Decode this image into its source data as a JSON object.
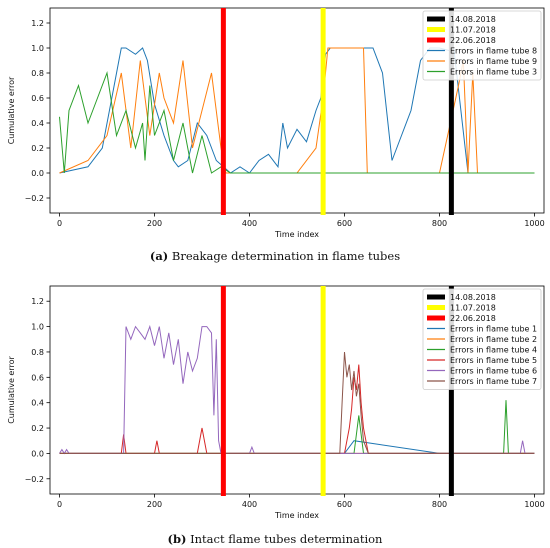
{
  "chart_data": [
    {
      "type": "line",
      "caption_label": "(a)",
      "caption_text": "Breakage determination in flame tubes",
      "xlabel": "Time index",
      "ylabel": "Cumulative error",
      "xlim": [
        -20,
        1020
      ],
      "ylim": [
        -0.32,
        1.32
      ],
      "xticks": [
        0,
        200,
        400,
        600,
        800,
        1000
      ],
      "yticks": [
        -0.2,
        0.0,
        0.2,
        0.4,
        0.6,
        0.8,
        1.0,
        1.2
      ],
      "ytick_labels": [
        "−0.2",
        "0.0",
        "0.2",
        "0.4",
        "0.6",
        "0.8",
        "1.0",
        "1.2"
      ],
      "legend": "upper-right",
      "vlines": [
        {
          "label": "14.08.2018",
          "x": 825,
          "color": "#000000"
        },
        {
          "label": "11.07.2018",
          "x": 555,
          "color": "#ffff00"
        },
        {
          "label": "22.06.2018",
          "x": 345,
          "color": "#ff0000"
        }
      ],
      "series": [
        {
          "name": "Errors in flame tube 8",
          "color": "#1f77b4",
          "x": [
            0,
            60,
            90,
            110,
            125,
            130,
            140,
            160,
            175,
            185,
            200,
            220,
            240,
            250,
            270,
            290,
            310,
            330,
            345,
            360,
            380,
            400,
            420,
            440,
            460,
            470,
            480,
            500,
            520,
            540,
            550,
            560,
            570,
            580,
            600,
            610,
            620,
            640,
            660,
            680,
            700,
            720,
            740,
            760,
            780,
            800,
            820,
            830,
            860,
            880,
            900,
            930,
            960,
            1000
          ],
          "y": [
            0.0,
            0.05,
            0.2,
            0.6,
            0.9,
            1.0,
            1.0,
            0.95,
            1.0,
            0.9,
            0.55,
            0.3,
            0.1,
            0.05,
            0.1,
            0.4,
            0.3,
            0.1,
            0.05,
            0.0,
            0.05,
            0.0,
            0.1,
            0.15,
            0.05,
            0.4,
            0.2,
            0.35,
            0.25,
            0.5,
            0.6,
            0.95,
            1.0,
            1.0,
            1.0,
            1.0,
            1.0,
            1.0,
            1.0,
            0.8,
            0.1,
            0.3,
            0.5,
            0.9,
            1.0,
            1.0,
            0.98,
            1.0,
            0.0,
            0.0,
            0.0,
            0.0,
            0.0,
            0.0
          ]
        },
        {
          "name": "Errors in flame tube 9",
          "color": "#ff7f0e",
          "x": [
            0,
            60,
            100,
            130,
            150,
            170,
            190,
            210,
            220,
            240,
            260,
            280,
            300,
            320,
            340,
            350,
            400,
            450,
            500,
            540,
            555,
            565,
            600,
            640,
            648,
            660,
            700,
            760,
            800,
            840,
            850,
            860,
            870,
            880,
            1000
          ],
          "y": [
            0.0,
            0.1,
            0.3,
            0.8,
            0.2,
            0.9,
            0.3,
            0.8,
            0.6,
            0.4,
            0.9,
            0.2,
            0.5,
            0.8,
            0.2,
            0.0,
            0.0,
            0.0,
            0.0,
            0.2,
            0.6,
            1.0,
            1.0,
            1.0,
            0.0,
            0.0,
            0.0,
            0.0,
            0.0,
            0.7,
            0.9,
            0.0,
            0.8,
            0.0,
            0.0
          ]
        },
        {
          "name": "Errors in flame tube 3",
          "color": "#2ca02c",
          "x": [
            0,
            10,
            20,
            40,
            60,
            80,
            100,
            120,
            140,
            160,
            175,
            180,
            190,
            200,
            220,
            240,
            260,
            280,
            300,
            320,
            340,
            360,
            400,
            480,
            520,
            540,
            560,
            580,
            600,
            620,
            625,
            640,
            660,
            700,
            760,
            800,
            830,
            840,
            880,
            900,
            940,
            960,
            1000
          ],
          "y": [
            0.45,
            0.0,
            0.5,
            0.7,
            0.4,
            0.6,
            0.8,
            0.3,
            0.5,
            0.2,
            0.4,
            0.1,
            0.7,
            0.3,
            0.5,
            0.1,
            0.4,
            0.0,
            0.3,
            0.0,
            0.05,
            0.0,
            0.0,
            0.0,
            0.0,
            0.0,
            0.0,
            0.0,
            0.0,
            0.0,
            0.0,
            0.0,
            0.0,
            0.0,
            0.0,
            0.0,
            0.0,
            0.0,
            0.0,
            0.0,
            0.0,
            0.0,
            0.0
          ]
        }
      ]
    },
    {
      "type": "line",
      "caption_label": "(b)",
      "caption_text": "Intact flame tubes determination",
      "xlabel": "Time index",
      "ylabel": "Cumulative error",
      "xlim": [
        -20,
        1020
      ],
      "ylim": [
        -0.32,
        1.32
      ],
      "xticks": [
        0,
        200,
        400,
        600,
        800,
        1000
      ],
      "yticks": [
        -0.2,
        0.0,
        0.2,
        0.4,
        0.6,
        0.8,
        1.0,
        1.2
      ],
      "ytick_labels": [
        "−0.2",
        "0.0",
        "0.2",
        "0.4",
        "0.6",
        "0.8",
        "1.0",
        "1.2"
      ],
      "legend": "upper-right",
      "vlines": [
        {
          "label": "14.08.2018",
          "x": 825,
          "color": "#000000"
        },
        {
          "label": "11.07.2018",
          "x": 555,
          "color": "#ffff00"
        },
        {
          "label": "22.06.2018",
          "x": 345,
          "color": "#ff0000"
        }
      ],
      "series": [
        {
          "name": "Errors in flame tube 1",
          "color": "#1f77b4",
          "x": [
            0,
            200,
            400,
            600,
            620,
            800,
            1000
          ],
          "y": [
            0.0,
            0.0,
            0.0,
            0.0,
            0.1,
            0.0,
            0.0
          ]
        },
        {
          "name": "Errors in flame tube 2",
          "color": "#ff7f0e",
          "x": [
            0,
            200,
            400,
            600,
            800,
            1000
          ],
          "y": [
            0.0,
            0.0,
            0.0,
            0.0,
            0.0,
            0.0
          ]
        },
        {
          "name": "Errors in flame tube 4",
          "color": "#2ca02c",
          "x": [
            0,
            620,
            630,
            640,
            930,
            935,
            940,
            945,
            1000
          ],
          "y": [
            0.0,
            0.0,
            0.3,
            0.0,
            0.0,
            0.0,
            0.42,
            0.0,
            0.0
          ]
        },
        {
          "name": "Errors in flame tube 5",
          "color": "#d62728",
          "x": [
            0,
            130,
            135,
            140,
            200,
            205,
            210,
            290,
            300,
            310,
            600,
            605,
            610,
            615,
            620,
            625,
            630,
            635,
            640,
            645,
            650,
            1000
          ],
          "y": [
            0.0,
            0.0,
            0.15,
            0.0,
            0.0,
            0.1,
            0.0,
            0.0,
            0.2,
            0.0,
            0.0,
            0.1,
            0.2,
            0.35,
            0.6,
            0.5,
            0.7,
            0.4,
            0.2,
            0.1,
            0.0,
            0.0
          ]
        },
        {
          "name": "Errors in flame tube 6",
          "color": "#9467bd",
          "x": [
            0,
            5,
            10,
            15,
            20,
            135,
            140,
            150,
            160,
            170,
            180,
            190,
            200,
            210,
            220,
            230,
            240,
            250,
            260,
            270,
            280,
            290,
            300,
            310,
            320,
            325,
            330,
            335,
            340,
            400,
            405,
            410,
            970,
            975,
            980,
            1000
          ],
          "y": [
            0.0,
            0.03,
            0.0,
            0.03,
            0.0,
            0.0,
            1.0,
            0.9,
            1.0,
            0.95,
            0.9,
            1.0,
            0.85,
            1.0,
            0.75,
            0.95,
            0.7,
            0.9,
            0.55,
            0.8,
            0.65,
            0.75,
            1.0,
            1.0,
            0.95,
            0.3,
            0.9,
            0.1,
            0.0,
            0.0,
            0.05,
            0.0,
            0.0,
            0.1,
            0.0,
            0.0
          ]
        },
        {
          "name": "Errors in flame tube 7",
          "color": "#8c564b",
          "x": [
            0,
            590,
            595,
            600,
            605,
            610,
            615,
            620,
            625,
            630,
            635,
            640,
            650,
            1000
          ],
          "y": [
            0.0,
            0.0,
            0.4,
            0.8,
            0.6,
            0.7,
            0.5,
            0.65,
            0.45,
            0.55,
            0.3,
            0.1,
            0.0,
            0.0
          ]
        }
      ]
    }
  ]
}
